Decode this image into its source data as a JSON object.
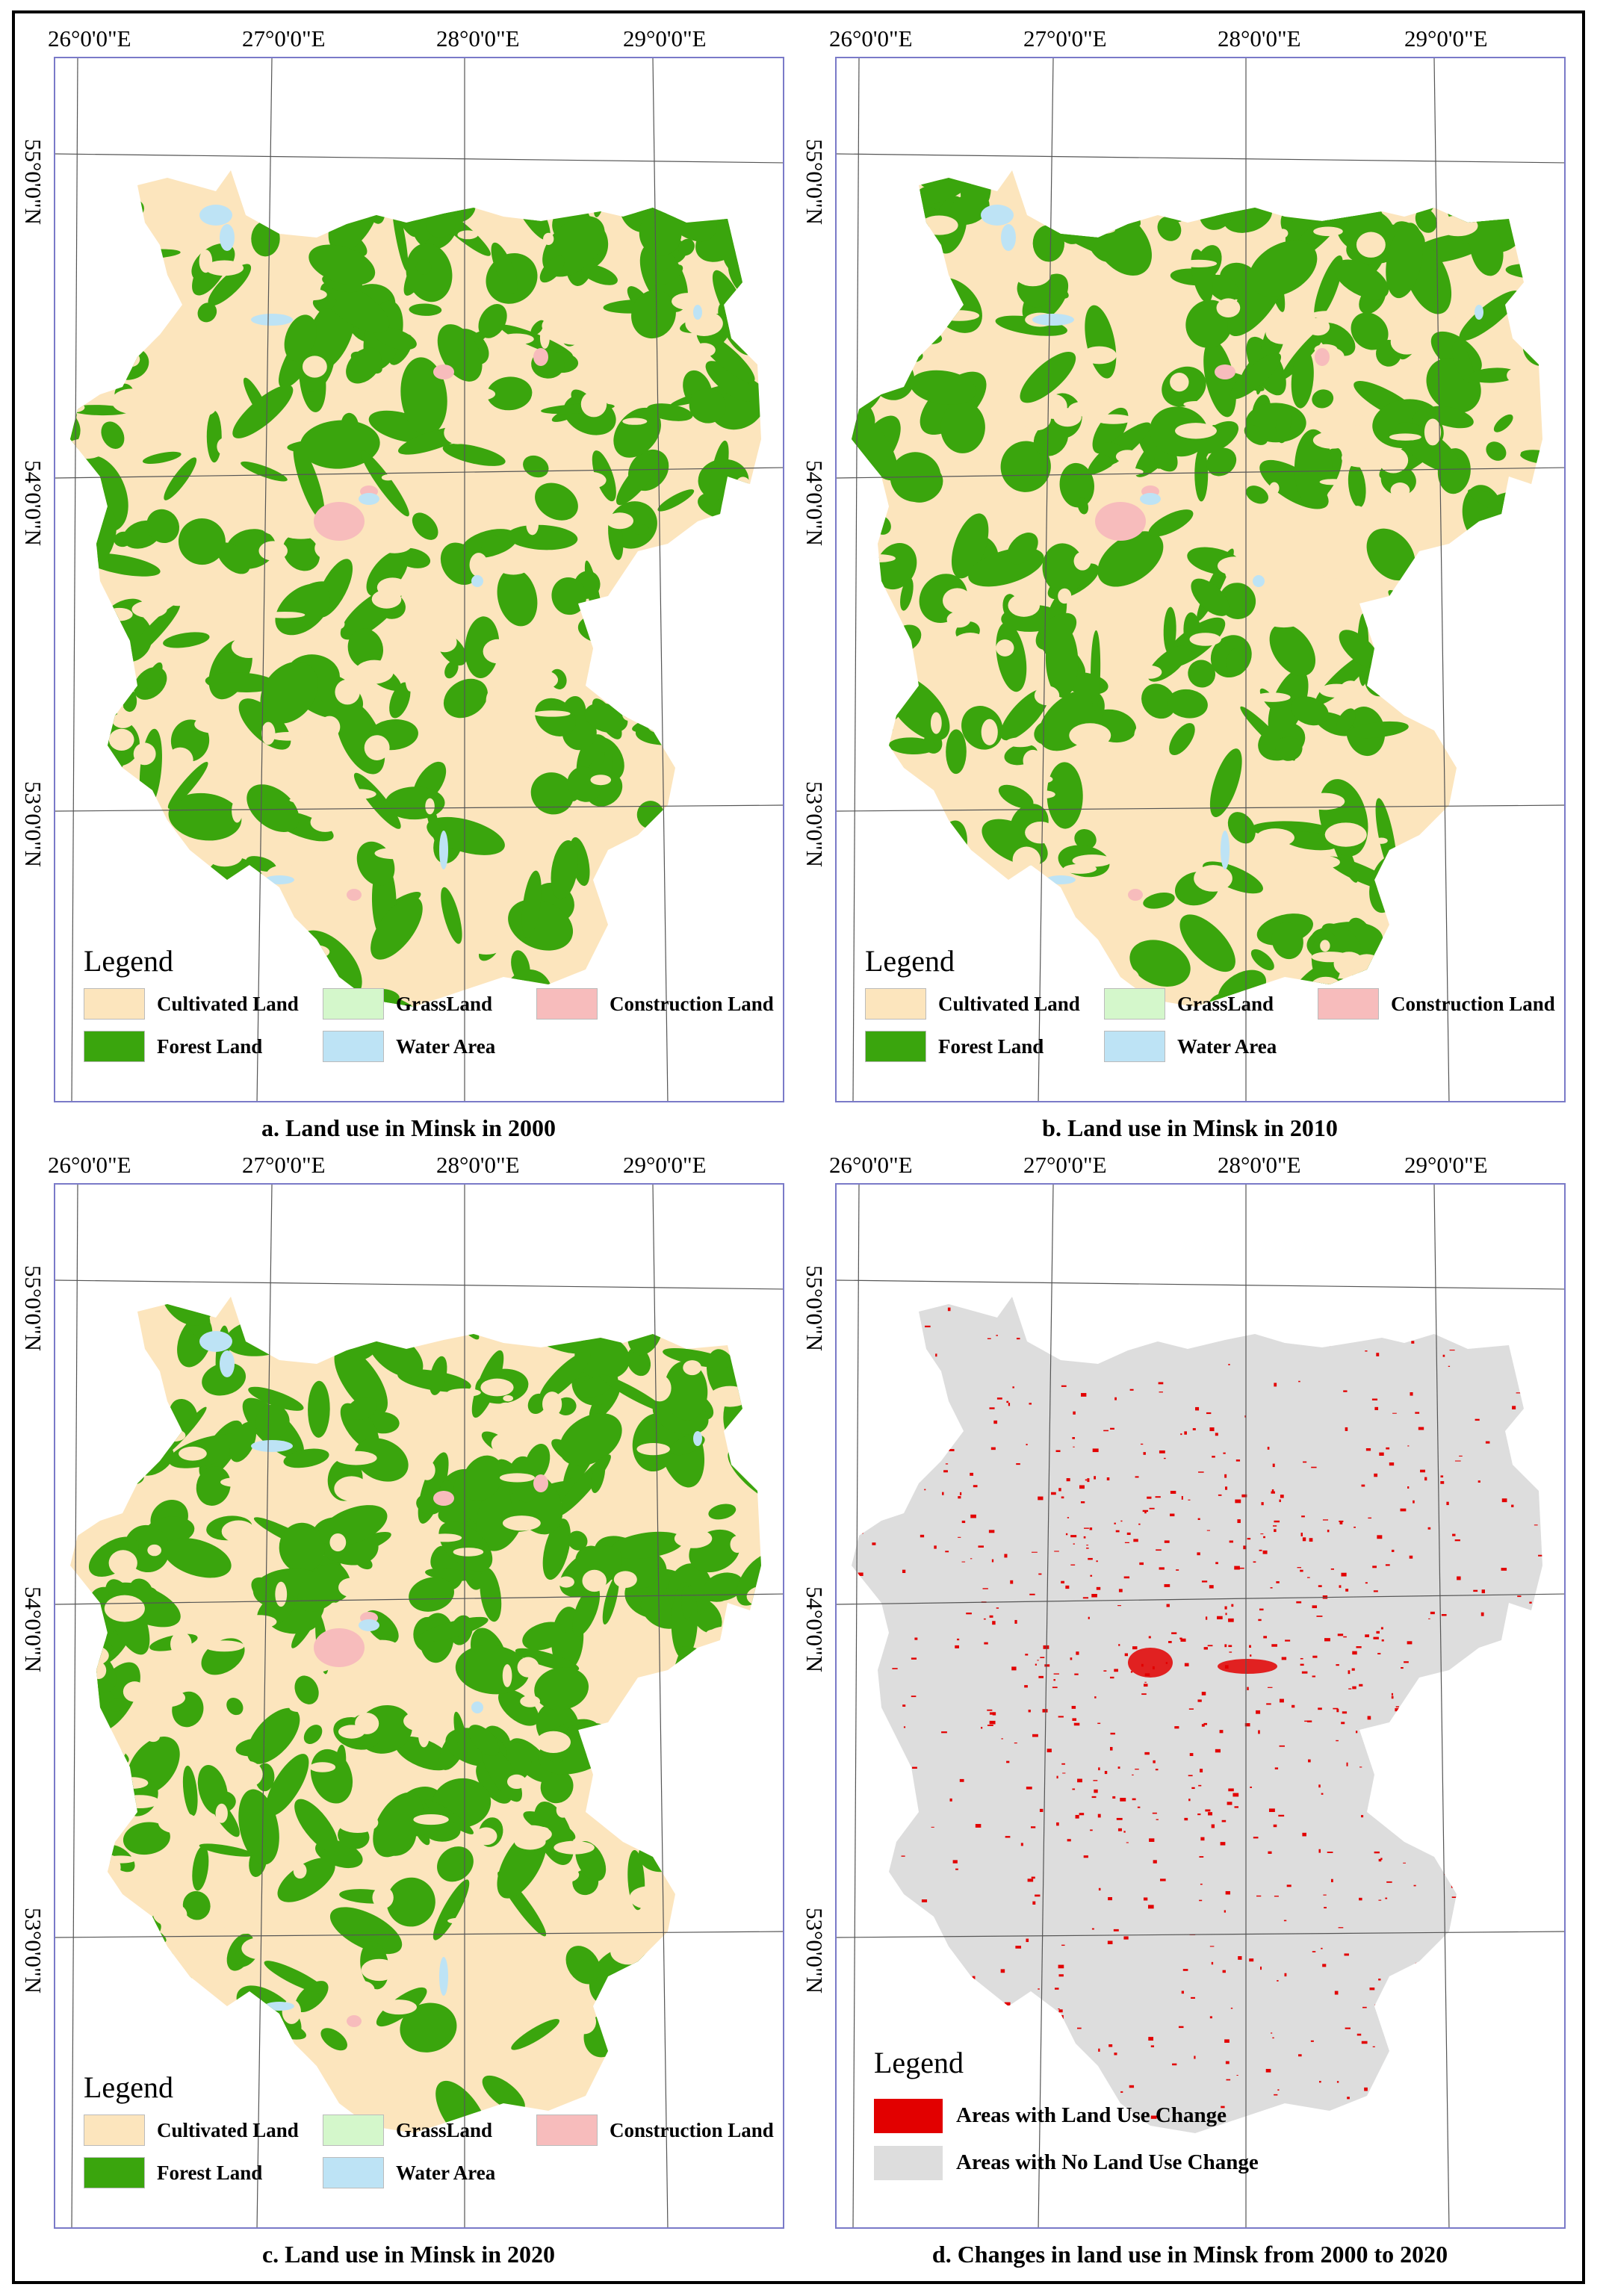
{
  "colors": {
    "cultivated": "#fce5bd",
    "forest": "#3aa50d",
    "grass": "#d4f7cb",
    "construction": "#f7bcbc",
    "water": "#bde3f5",
    "change": "#e20000",
    "nochange": "#dddddd",
    "frame": "#7a7ac8"
  },
  "lon_labels": [
    "26°0'0\"E",
    "27°0'0\"E",
    "28°0'0\"E",
    "29°0'0\"E"
  ],
  "lat_labels": [
    "55°0'0\"N",
    "54°0'0\"N",
    "53°0'0\"N"
  ],
  "panels": [
    {
      "caption": "a. Land use in Minsk in 2000",
      "legend": {
        "title": "Legend",
        "items": [
          {
            "label": "Cultivated Land",
            "color_key": "cultivated"
          },
          {
            "label": "GrassLand",
            "color_key": "grass"
          },
          {
            "label": "Construction Land",
            "color_key": "construction"
          },
          {
            "label": "Forest Land",
            "color_key": "forest"
          },
          {
            "label": "Water Area",
            "color_key": "water"
          }
        ]
      }
    },
    {
      "caption": "b. Land use in Minsk in 2010",
      "legend": {
        "title": "Legend",
        "items": [
          {
            "label": "Cultivated Land",
            "color_key": "cultivated"
          },
          {
            "label": "GrassLand",
            "color_key": "grass"
          },
          {
            "label": "Construction Land",
            "color_key": "construction"
          },
          {
            "label": "Forest Land",
            "color_key": "forest"
          },
          {
            "label": "Water Area",
            "color_key": "water"
          }
        ]
      }
    },
    {
      "caption": "c. Land use in Minsk in 2020",
      "legend": {
        "title": "Legend",
        "items": [
          {
            "label": "Cultivated Land",
            "color_key": "cultivated"
          },
          {
            "label": "GrassLand",
            "color_key": "grass"
          },
          {
            "label": "Construction Land",
            "color_key": "construction"
          },
          {
            "label": "Forest Land",
            "color_key": "forest"
          },
          {
            "label": "Water Area",
            "color_key": "water"
          }
        ]
      }
    },
    {
      "caption": "d. Changes in land use in Minsk from 2000 to 2020",
      "legend": {
        "title": "Legend",
        "items": [
          {
            "label": "Areas with  Land Use Change",
            "color_key": "change"
          },
          {
            "label": "Areas with No Land Use Change",
            "color_key": "nochange"
          }
        ]
      }
    }
  ]
}
